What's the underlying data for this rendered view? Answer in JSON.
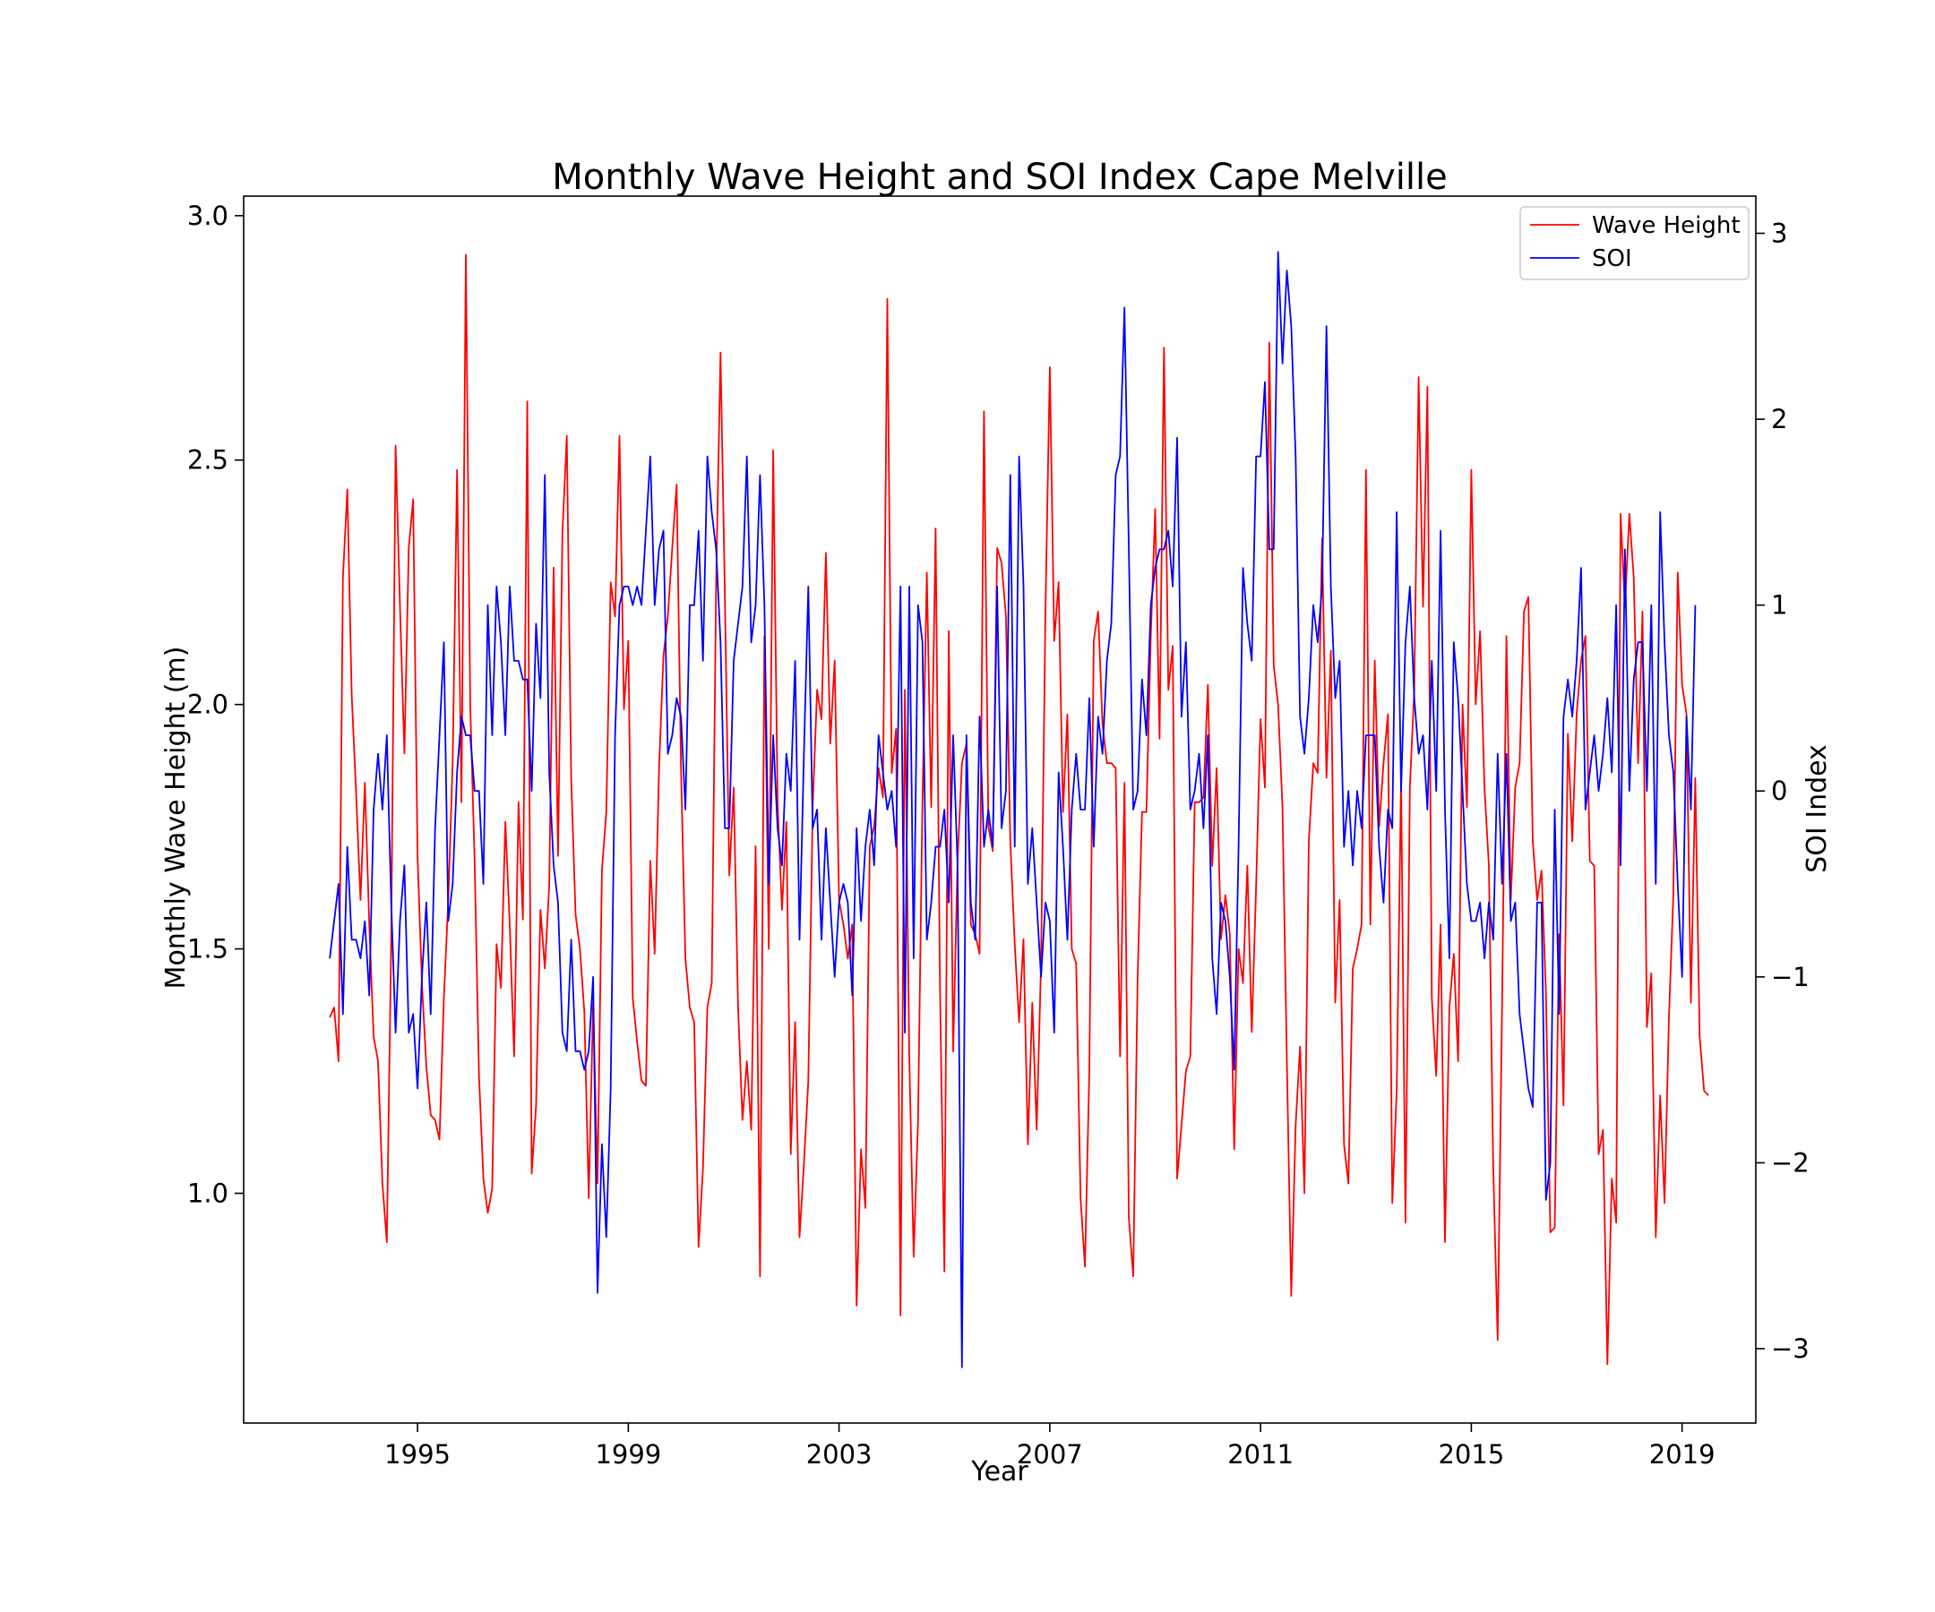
{
  "chart_data": {
    "type": "line",
    "title": "Monthly Wave Height and SOI Index Cape Melville",
    "xlabel": "Year",
    "ylabel_left": "Monthly Wave Height (m)",
    "ylabel_right": "SOI Index",
    "x_start": "1993-05",
    "x_end": "2018-12",
    "xlim": [
      1991.7,
      2020.4
    ],
    "ylim_left": [
      0.53,
      3.04
    ],
    "ylim_right": [
      -3.4,
      3.2
    ],
    "xticks": [
      1995,
      1999,
      2003,
      2007,
      2011,
      2015,
      2019
    ],
    "yticks_left": [
      1.0,
      1.5,
      2.0,
      2.5,
      3.0
    ],
    "yticks_left_labels": [
      "1.0",
      "1.5",
      "2.0",
      "2.5",
      "3.0"
    ],
    "yticks_right": [
      -3,
      -2,
      -1,
      0,
      1,
      2,
      3
    ],
    "yticks_right_labels": [
      "−3",
      "−2",
      "−1",
      "0",
      "1",
      "2",
      "3"
    ],
    "grid": false,
    "legend_position": "top-right",
    "series": [
      {
        "name": "Wave Height",
        "axis": "left",
        "color": "#ff0000",
        "values": [
          1.36,
          1.38,
          1.27,
          2.26,
          2.44,
          2.02,
          1.82,
          1.6,
          1.84,
          1.55,
          1.32,
          1.27,
          1.02,
          0.9,
          1.52,
          2.53,
          2.2,
          1.9,
          2.32,
          2.42,
          1.69,
          1.43,
          1.26,
          1.16,
          1.15,
          1.11,
          1.4,
          1.6,
          1.88,
          2.48,
          1.8,
          2.92,
          2.0,
          1.68,
          1.24,
          1.03,
          0.96,
          1.01,
          1.51,
          1.42,
          1.76,
          1.55,
          1.28,
          1.8,
          1.56,
          2.62,
          1.04,
          1.18,
          1.58,
          1.46,
          1.63,
          2.28,
          1.69,
          2.35,
          2.55,
          1.85,
          1.57,
          1.5,
          1.37,
          0.99,
          1.39,
          1.02,
          1.66,
          1.78,
          2.25,
          2.18,
          2.55,
          1.99,
          2.13,
          1.4,
          1.31,
          1.23,
          1.22,
          1.68,
          1.49,
          1.87,
          2.1,
          2.18,
          2.32,
          2.45,
          1.87,
          1.48,
          1.38,
          1.35,
          0.89,
          1.05,
          1.38,
          1.43,
          2.25,
          2.72,
          2.22,
          1.65,
          1.83,
          1.38,
          1.15,
          1.27,
          1.13,
          1.71,
          0.83,
          2.14,
          1.5,
          2.52,
          1.8,
          1.58,
          1.76,
          1.08,
          1.35,
          0.91,
          1.06,
          1.23,
          1.79,
          2.03,
          1.97,
          2.31,
          1.92,
          2.09,
          1.6,
          1.55,
          1.48,
          1.55,
          0.77,
          1.09,
          0.97,
          1.71,
          1.75,
          1.87,
          1.81,
          2.83,
          1.86,
          1.95,
          0.75,
          2.03,
          1.28,
          0.87,
          1.15,
          1.8,
          2.27,
          1.79,
          2.36,
          1.42,
          0.84,
          2.15,
          1.29,
          1.68,
          1.88,
          1.92,
          1.55,
          1.53,
          1.49,
          2.6,
          1.75,
          1.7,
          2.32,
          2.29,
          2.18,
          1.72,
          1.51,
          1.35,
          1.52,
          1.1,
          1.39,
          1.13,
          1.47,
          2.19,
          2.69,
          2.13,
          2.25,
          1.78,
          1.98,
          1.5,
          1.47,
          0.99,
          0.85,
          1.25,
          2.13,
          2.19,
          1.96,
          1.88,
          1.88,
          1.87,
          1.28,
          1.84,
          0.95,
          0.83,
          1.44,
          1.78,
          1.78,
          2.14,
          2.4,
          1.93,
          2.73,
          2.03,
          2.12,
          1.03,
          1.14,
          1.25,
          1.28,
          1.8,
          1.8,
          1.81,
          2.04,
          1.67,
          1.87,
          1.52,
          1.61,
          1.53,
          1.09,
          1.5,
          1.43,
          1.67,
          1.33,
          1.63,
          1.97,
          1.83,
          2.74,
          2.08,
          2.0,
          1.79,
          1.27,
          0.79,
          1.14,
          1.3,
          1.0,
          1.72,
          1.88,
          1.86,
          2.34,
          1.85,
          2.11,
          1.39,
          1.6,
          1.1,
          1.02,
          1.46,
          1.5,
          1.55,
          2.48,
          1.55,
          2.09,
          1.75,
          1.88,
          1.98,
          0.98,
          1.21,
          1.85,
          0.94,
          1.83,
          2.03,
          2.67,
          2.2,
          2.65,
          1.4,
          1.24,
          1.55,
          0.9,
          1.38,
          1.49,
          1.27,
          2.0,
          1.79,
          2.48,
          2.0,
          2.15,
          1.83,
          1.67,
          1.05,
          0.7,
          1.38,
          2.14,
          1.6,
          1.83,
          1.88,
          2.19,
          2.22,
          1.72,
          1.6,
          1.66,
          1.41,
          0.92,
          0.93,
          1.53,
          1.18,
          1.94,
          1.72,
          1.98,
          2.09,
          2.14,
          1.68,
          1.67,
          1.08,
          1.13,
          0.65,
          1.03,
          0.94,
          2.39,
          2.2,
          2.39,
          2.26,
          1.88,
          2.19,
          1.34,
          1.45,
          0.91,
          1.2,
          0.98,
          1.36,
          1.61,
          2.27,
          2.04,
          1.98,
          1.39,
          1.85,
          1.32,
          1.21,
          1.2
        ]
      },
      {
        "name": "SOI",
        "axis": "right",
        "color": "#0000ff",
        "values": [
          -0.9,
          -0.7,
          -0.5,
          -1.2,
          -0.3,
          -0.8,
          -0.8,
          -0.9,
          -0.7,
          -1.1,
          -0.1,
          0.2,
          -0.1,
          0.3,
          -0.6,
          -1.3,
          -0.7,
          -0.4,
          -1.3,
          -1.2,
          -1.6,
          -1.0,
          -0.6,
          -1.2,
          -0.2,
          0.3,
          0.8,
          -0.7,
          -0.5,
          0.1,
          0.4,
          0.3,
          0.3,
          0.0,
          0.0,
          -0.5,
          1.0,
          0.3,
          1.1,
          0.8,
          0.3,
          1.1,
          0.7,
          0.7,
          0.6,
          0.6,
          0.0,
          0.9,
          0.5,
          1.7,
          0.1,
          -0.4,
          -0.6,
          -1.3,
          -1.4,
          -0.8,
          -1.4,
          -1.4,
          -1.5,
          -1.4,
          -1.0,
          -2.7,
          -1.9,
          -2.4,
          -1.6,
          0.3,
          1.0,
          1.1,
          1.1,
          1.0,
          1.1,
          1.0,
          1.4,
          1.8,
          1.0,
          1.3,
          1.4,
          0.2,
          0.3,
          0.5,
          0.4,
          -0.1,
          1.0,
          1.0,
          1.4,
          0.7,
          1.8,
          1.5,
          1.3,
          0.8,
          -0.2,
          -0.2,
          0.7,
          0.9,
          1.1,
          1.8,
          0.8,
          1.0,
          1.7,
          1.0,
          -0.5,
          0.3,
          -0.2,
          -0.4,
          0.2,
          0.0,
          0.7,
          -0.8,
          0.2,
          1.1,
          -0.2,
          -0.1,
          -0.8,
          -0.2,
          -0.6,
          -1.0,
          -0.6,
          -0.5,
          -0.6,
          -1.1,
          -0.2,
          -0.7,
          -0.3,
          -0.1,
          -0.4,
          0.3,
          0.1,
          -0.1,
          0.0,
          -0.3,
          1.1,
          -1.3,
          1.1,
          -0.9,
          1.0,
          0.8,
          -0.8,
          -0.6,
          -0.3,
          -0.3,
          -0.1,
          -0.6,
          0.3,
          -0.4,
          -3.1,
          0.3,
          -0.6,
          -0.8,
          0.4,
          -0.3,
          -0.1,
          -0.3,
          1.1,
          -0.2,
          0.0,
          1.7,
          -0.3,
          1.8,
          1.1,
          -0.5,
          -0.2,
          -0.6,
          -1.0,
          -0.6,
          -0.7,
          -1.3,
          0.1,
          -0.3,
          -0.8,
          -0.1,
          0.2,
          -0.1,
          -0.1,
          0.5,
          -0.3,
          0.4,
          0.2,
          0.7,
          0.9,
          1.7,
          1.8,
          2.6,
          1.3,
          -0.1,
          0.0,
          0.6,
          0.3,
          1.0,
          1.2,
          1.3,
          1.3,
          1.4,
          1.1,
          1.9,
          0.4,
          0.8,
          -0.1,
          0.0,
          0.2,
          -0.2,
          0.3,
          -0.9,
          -1.2,
          -0.6,
          -0.7,
          -1.0,
          -1.5,
          -0.3,
          1.2,
          0.9,
          0.7,
          1.8,
          1.8,
          2.2,
          1.3,
          1.3,
          2.9,
          2.3,
          2.8,
          2.5,
          1.8,
          0.4,
          0.2,
          0.5,
          1.0,
          0.8,
          1.1,
          2.5,
          1.1,
          0.5,
          0.7,
          -0.3,
          0.0,
          -0.4,
          0.0,
          -0.2,
          0.3,
          0.3,
          0.3,
          -0.3,
          -0.6,
          -0.1,
          -0.2,
          1.5,
          0.0,
          0.8,
          1.1,
          0.5,
          0.2,
          0.3,
          -0.1,
          0.7,
          0.0,
          1.4,
          -0.1,
          -0.9,
          0.8,
          0.5,
          0.0,
          -0.5,
          -0.7,
          -0.7,
          -0.6,
          -0.9,
          -0.6,
          -0.8,
          0.2,
          -0.5,
          0.2,
          -0.7,
          -0.6,
          -1.2,
          -1.4,
          -1.6,
          -1.7,
          -0.6,
          -0.6,
          -2.2,
          -2.0,
          -0.1,
          -1.2,
          0.4,
          0.6,
          0.4,
          0.7,
          1.2,
          -0.1,
          0.1,
          0.3,
          0.0,
          0.2,
          0.5,
          0.1,
          1.0,
          -0.4,
          1.3,
          0.0,
          0.6,
          0.8,
          0.8,
          0.0,
          1.0,
          -0.5,
          1.5,
          0.8,
          0.3,
          0.1,
          -0.5,
          -1.0,
          0.4,
          -0.1,
          1.0
        ]
      }
    ]
  }
}
